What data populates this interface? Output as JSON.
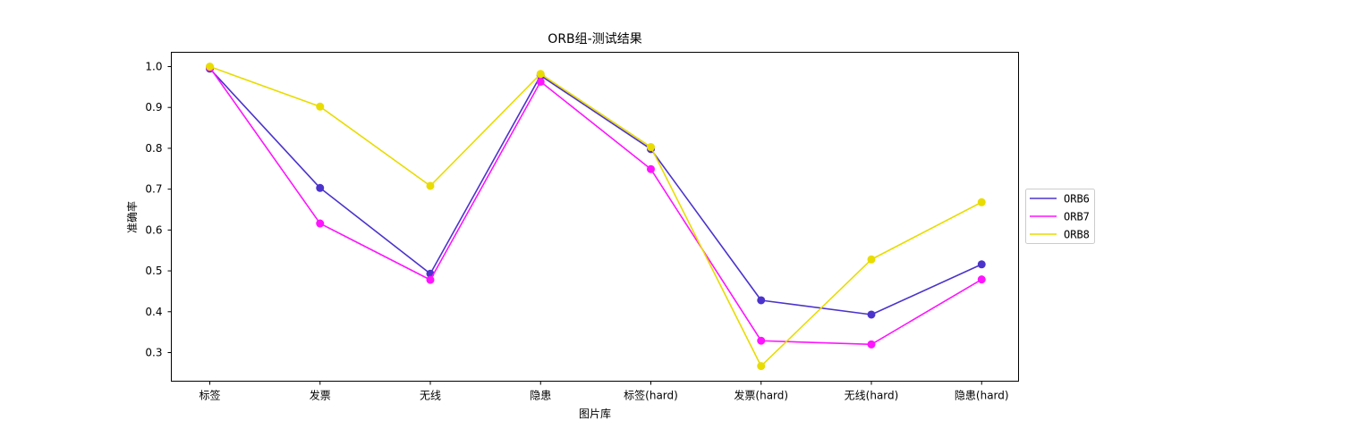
{
  "chart_data": {
    "type": "line",
    "title": "ORB组-测试结果",
    "xlabel": "图片库",
    "ylabel": "准确率",
    "categories": [
      "标签",
      "发票",
      "无线",
      "隐患",
      "标签(hard)",
      "发票(hard)",
      "无线(hard)",
      "隐患(hard)"
    ],
    "yticks": [
      "0.3",
      "0.4",
      "0.5",
      "0.6",
      "0.7",
      "0.8",
      "0.9",
      "1.0"
    ],
    "ylim": [
      0.23,
      1.035
    ],
    "grid": false,
    "legend_position": "right, outside plot",
    "markers": "circle",
    "series": [
      {
        "name": "ORB6",
        "color": "#4b33cc",
        "values": [
          0.995,
          0.703,
          0.493,
          0.978,
          0.798,
          0.428,
          0.393,
          0.516
        ]
      },
      {
        "name": "ORB7",
        "color": "#ff14ff",
        "values": [
          0.998,
          0.616,
          0.478,
          0.963,
          0.749,
          0.329,
          0.32,
          0.479
        ]
      },
      {
        "name": "ORB8",
        "color": "#e8dc00",
        "values": [
          1.0,
          0.902,
          0.708,
          0.982,
          0.803,
          0.267,
          0.528,
          0.668
        ]
      }
    ]
  }
}
